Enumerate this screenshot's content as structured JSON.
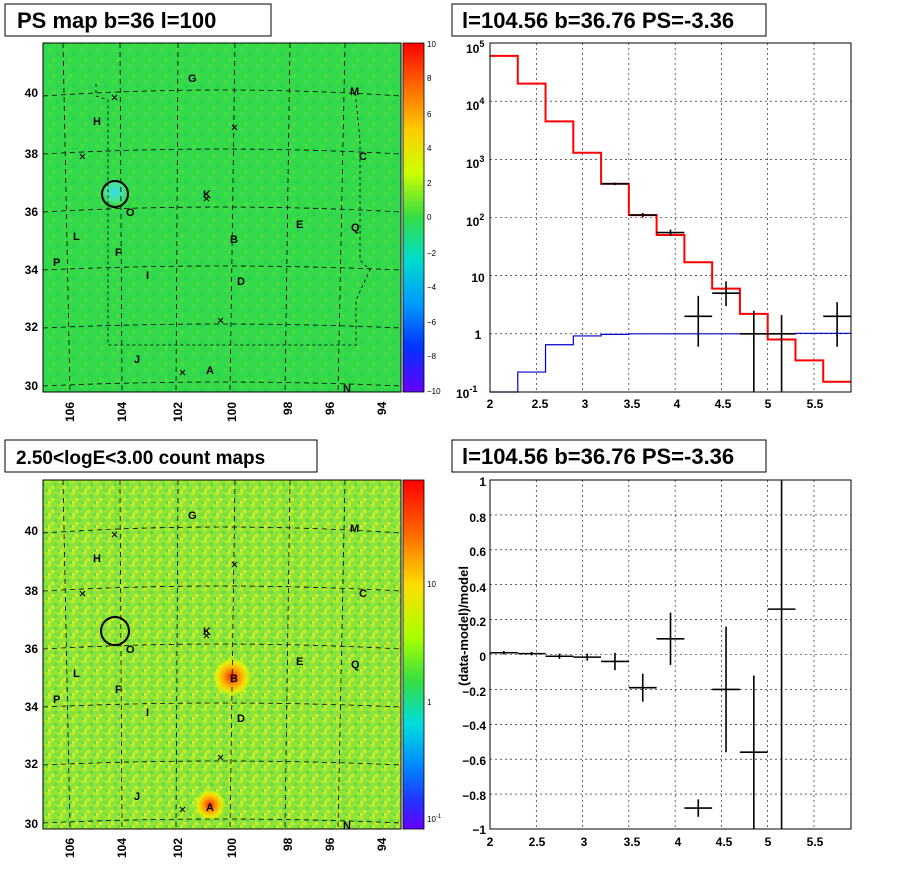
{
  "colors": {
    "map_green": "#33d94a",
    "count_green": "#7fe23a",
    "model_red": "#ff0000",
    "bkg_blue": "#0000cc",
    "data_black": "#000000"
  },
  "panels": {
    "tl": {
      "title": "PS map b=36 l=100"
    },
    "tr": {
      "title": "l=104.56 b=36.76 PS=-3.36"
    },
    "bl": {
      "title": "2.50<logE<3.00 count maps"
    },
    "br": {
      "title": "l=104.56 b=36.76 PS=-3.36"
    }
  },
  "map_axes": {
    "x_ticks": [
      "106",
      "104",
      "102",
      "100",
      "98",
      "96",
      "94"
    ],
    "y_ticks": [
      "30",
      "32",
      "34",
      "36",
      "38",
      "40"
    ],
    "labels": [
      "G",
      "M",
      "H",
      "C",
      "K",
      "O",
      "E",
      "Q",
      "B",
      "L",
      "F",
      "P",
      "I",
      "D",
      "J",
      "A",
      "N"
    ]
  },
  "ps_colorbar": {
    "ticks": [
      "10",
      "8",
      "6",
      "4",
      "2",
      "0",
      "−2",
      "−4",
      "−6",
      "−8",
      "−10"
    ]
  },
  "count_colorbar": {
    "ticks": [
      "10",
      "1"
    ],
    "low_tick_base": "10",
    "low_tick_exp": "-1"
  },
  "chart_data": [
    {
      "type": "line",
      "panel": "top-right",
      "title": "l=104.56 b=36.76 PS=-3.36",
      "xlim": [
        2,
        5.9
      ],
      "ylim": [
        0.1,
        100000
      ],
      "yscale": "log",
      "grid": true,
      "x_ticks": [
        "2",
        "2.5",
        "3",
        "3.5",
        "4",
        "4.5",
        "5",
        "5.5"
      ],
      "y_tick_labels": [
        "10",
        "1",
        "10"
      ],
      "y_tick_exps": [
        "5",
        "4",
        "3",
        "2",
        "-1"
      ],
      "series": [
        {
          "kind": "step",
          "color": "#ff0000",
          "edges": [
            2.0,
            2.3,
            2.6,
            2.9,
            3.2,
            3.5,
            3.8,
            4.1,
            4.4,
            4.7,
            5.0,
            5.3,
            5.6,
            5.9
          ],
          "values": [
            60000,
            20000,
            4500,
            1300,
            380,
            110,
            50,
            17,
            6,
            2.2,
            0.8,
            0.35,
            0.15
          ]
        },
        {
          "kind": "step",
          "color": "#0000cc",
          "edges": [
            2.0,
            2.3,
            2.6,
            2.9,
            3.2,
            3.5,
            3.8,
            4.1,
            4.4,
            4.7,
            5.0,
            5.3,
            5.6,
            5.9
          ],
          "values": [
            0.1,
            0.22,
            0.65,
            0.92,
            0.98,
            1.0,
            1.0,
            1.0,
            1.0,
            1.0,
            1.0,
            1.02,
            1.02
          ]
        },
        {
          "kind": "errorbars",
          "color": "#000000",
          "points": [
            {
              "x": 3.35,
              "y": 380,
              "xerr": 0.15,
              "ylo": 360,
              "yhi": 400
            },
            {
              "x": 3.65,
              "y": 110,
              "xerr": 0.15,
              "ylo": 100,
              "yhi": 120
            },
            {
              "x": 3.95,
              "y": 55,
              "xerr": 0.15,
              "ylo": 48,
              "yhi": 62
            },
            {
              "x": 4.25,
              "y": 2,
              "xerr": 0.15,
              "ylo": 0.6,
              "yhi": 4.5
            },
            {
              "x": 4.55,
              "y": 5,
              "xerr": 0.15,
              "ylo": 3,
              "yhi": 8
            },
            {
              "x": 4.85,
              "y": 1,
              "xerr": 0.15,
              "ylo": 0.1,
              "yhi": 2.5
            },
            {
              "x": 5.15,
              "y": 1,
              "xerr": 0.15,
              "ylo": 0.1,
              "yhi": 2.1
            },
            {
              "x": 5.75,
              "y": 2,
              "xerr": 0.15,
              "ylo": 0.6,
              "yhi": 3.5
            }
          ]
        }
      ]
    },
    {
      "type": "scatter",
      "panel": "bottom-right",
      "title": "l=104.56 b=36.76 PS=-3.36",
      "ylabel": "(data-model)/model",
      "xlim": [
        2,
        5.9
      ],
      "ylim": [
        -1,
        1
      ],
      "grid": true,
      "x_ticks": [
        "2",
        "2.5",
        "3",
        "3.5",
        "4",
        "4.5",
        "5",
        "5.5"
      ],
      "y_ticks": [
        "1",
        "0.8",
        "0.6",
        "0.4",
        "0.2",
        "0",
        "−0.2",
        "−0.4",
        "−0.6",
        "−0.8",
        "−1"
      ],
      "points": [
        {
          "x": 2.15,
          "y": 0.01,
          "xerr": 0.15,
          "ylo": 0.0,
          "yhi": 0.02
        },
        {
          "x": 2.45,
          "y": 0.005,
          "xerr": 0.15,
          "ylo": -0.005,
          "yhi": 0.015
        },
        {
          "x": 2.75,
          "y": -0.01,
          "xerr": 0.15,
          "ylo": -0.025,
          "yhi": 0.005
        },
        {
          "x": 3.05,
          "y": -0.015,
          "xerr": 0.15,
          "ylo": -0.035,
          "yhi": 0.005
        },
        {
          "x": 3.35,
          "y": -0.04,
          "xerr": 0.15,
          "ylo": -0.09,
          "yhi": 0.01
        },
        {
          "x": 3.65,
          "y": -0.19,
          "xerr": 0.15,
          "ylo": -0.27,
          "yhi": -0.11
        },
        {
          "x": 3.95,
          "y": 0.09,
          "xerr": 0.15,
          "ylo": -0.06,
          "yhi": 0.24
        },
        {
          "x": 4.25,
          "y": -0.88,
          "xerr": 0.15,
          "ylo": -0.93,
          "yhi": -0.83
        },
        {
          "x": 4.55,
          "y": -0.2,
          "xerr": 0.15,
          "ylo": -0.56,
          "yhi": 0.16
        },
        {
          "x": 4.85,
          "y": -0.56,
          "xerr": 0.15,
          "ylo": -1.0,
          "yhi": -0.12
        },
        {
          "x": 5.15,
          "y": 0.26,
          "xerr": 0.15,
          "ylo": -1.0,
          "yhi": 1.0
        }
      ]
    }
  ]
}
